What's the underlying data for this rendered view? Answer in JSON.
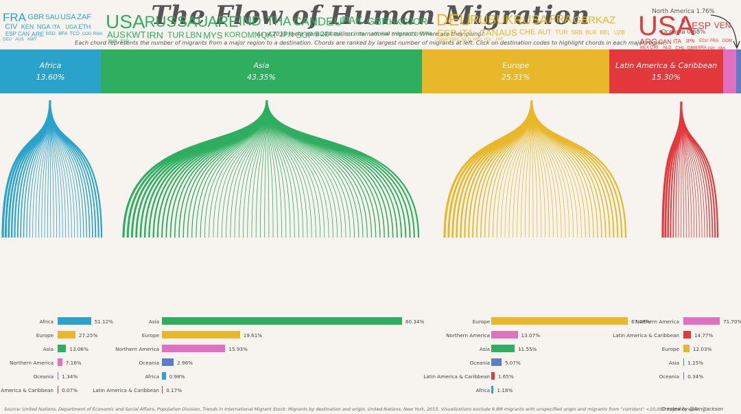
{
  "title": "The Flow of Human Migration",
  "subtitle_line1": "As of 2015 there were 244 million international migrants.  Where are they going?",
  "subtitle_line2": "Each chord represents the number of migrants from a major region to a destination.  Chords are ranked by largest number of migrants at left.  Click on destination codes to highlight chords in each major region.",
  "side_note": {
    "line1": "North America 1.76%",
    "line2": "&",
    "line3": "Oceania 0.68%"
  },
  "colors": {
    "Africa": "#2aa3cc",
    "Asia": "#2fae60",
    "Europe": "#e9b82a",
    "Latin America & Caribbean": "#e3383c",
    "Northern America": "#e071c0",
    "Oceania": "#5a7fc6",
    "background": "#f7f3ee"
  },
  "chart_data": {
    "type": "bar",
    "title": "The Flow of Human Migration",
    "regions": [
      {
        "name": "Africa",
        "share_pct": 13.6,
        "label": "13.60%"
      },
      {
        "name": "Asia",
        "share_pct": 43.35,
        "label": "43.35%"
      },
      {
        "name": "Europe",
        "share_pct": 25.31,
        "label": "25.31%"
      },
      {
        "name": "Latin America & Caribbean",
        "share_pct": 15.3,
        "label": "15.30%"
      },
      {
        "name": "North America",
        "share_pct": 1.76,
        "label": ""
      },
      {
        "name": "Oceania",
        "share_pct": 0.68,
        "label": ""
      }
    ],
    "origin_breakdown": [
      {
        "destination": "Africa",
        "rows": [
          {
            "origin": "Africa",
            "pct": 51.12,
            "label": "51.12%"
          },
          {
            "origin": "Europe",
            "pct": 27.25,
            "label": "27.25%"
          },
          {
            "origin": "Asia",
            "pct": 13.06,
            "label": "13.06%"
          },
          {
            "origin": "Northern America",
            "pct": 7.16,
            "label": "7.16%"
          },
          {
            "origin": "Oceania",
            "pct": 1.34,
            "label": "1.34%"
          },
          {
            "origin": "Latin America & Caribbean",
            "pct": 0.07,
            "label": "0.07%"
          }
        ]
      },
      {
        "destination": "Asia",
        "rows": [
          {
            "origin": "Asia",
            "pct": 60.34,
            "label": "60.34%"
          },
          {
            "origin": "Europe",
            "pct": 19.61,
            "label": "19.61%"
          },
          {
            "origin": "Northern America",
            "pct": 15.93,
            "label": "15.93%"
          },
          {
            "origin": "Oceania",
            "pct": 2.96,
            "label": "2.96%"
          },
          {
            "origin": "Africa",
            "pct": 0.98,
            "label": "0.98%"
          },
          {
            "origin": "Latin America & Caribbean",
            "pct": 0.17,
            "label": "0.17%"
          }
        ]
      },
      {
        "destination": "Europe",
        "rows": [
          {
            "origin": "Europe",
            "pct": 67.48,
            "label": "67.48%"
          },
          {
            "origin": "Northern America",
            "pct": 13.07,
            "label": "13.07%"
          },
          {
            "origin": "Asia",
            "pct": 11.55,
            "label": "11.55%"
          },
          {
            "origin": "Oceania",
            "pct": 5.07,
            "label": "5.07%"
          },
          {
            "origin": "Latin America & Caribbean",
            "pct": 1.65,
            "label": "1.65%"
          },
          {
            "origin": "Africa",
            "pct": 1.18,
            "label": "1.18%"
          }
        ]
      },
      {
        "destination": "Latin America & Caribbean",
        "rows": [
          {
            "origin": "Northern America",
            "pct": 71.7,
            "label": "71.70%"
          },
          {
            "origin": "Latin America & Caribbean",
            "pct": 14.77,
            "label": "14.77%"
          },
          {
            "origin": "Europe",
            "pct": 12.03,
            "label": "12.03%"
          },
          {
            "origin": "Asia",
            "pct": 1.15,
            "label": "1.15%"
          },
          {
            "origin": "Oceania",
            "pct": 0.34,
            "label": "0.34%"
          }
        ]
      }
    ],
    "destination_codes": [
      {
        "region": "Africa",
        "codes": [
          {
            "t": "FRA",
            "s": 17
          },
          {
            "t": "GBR",
            "s": 11
          },
          {
            "t": "SAU",
            "s": 10
          },
          {
            "t": "USA",
            "s": 11
          },
          {
            "t": "ZAF",
            "s": 11
          },
          {
            "t": "CIV",
            "s": 11
          },
          {
            "t": "KEN",
            "s": 9
          },
          {
            "t": "NGA",
            "s": 9
          },
          {
            "t": "ITA",
            "s": 8
          },
          {
            "t": "UGA",
            "s": 8
          },
          {
            "t": "ETH",
            "s": 9
          },
          {
            "t": "ESP",
            "s": 8
          },
          {
            "t": "CAN",
            "s": 8
          },
          {
            "t": "ARE",
            "s": 9
          },
          {
            "t": "SSD",
            "s": 7
          },
          {
            "t": "BFA",
            "s": 7
          },
          {
            "t": "TCD",
            "s": 7
          },
          {
            "t": "COD",
            "s": 6
          },
          {
            "t": "RWA",
            "s": 6
          },
          {
            "t": "DEU",
            "s": 6
          },
          {
            "t": "AUS",
            "s": 6
          },
          {
            "t": "KWT",
            "s": 6
          }
        ]
      },
      {
        "region": "Asia",
        "codes": [
          {
            "t": "USA",
            "s": 28
          },
          {
            "t": "RUS",
            "s": 22
          },
          {
            "t": "SAU",
            "s": 22
          },
          {
            "t": "ARE",
            "s": 22
          },
          {
            "t": "IND",
            "s": 19
          },
          {
            "t": "THA",
            "s": 18
          },
          {
            "t": "CAN",
            "s": 17
          },
          {
            "t": "DEU",
            "s": 17
          },
          {
            "t": "PAK",
            "s": 16
          },
          {
            "t": "GBR",
            "s": 15
          },
          {
            "t": "HKG",
            "s": 13
          },
          {
            "t": "JOR",
            "s": 14
          },
          {
            "t": "AUS",
            "s": 13
          },
          {
            "t": "KWT",
            "s": 13
          },
          {
            "t": "IRN",
            "s": 14
          },
          {
            "t": "TUR",
            "s": 12
          },
          {
            "t": "LBN",
            "s": 12
          },
          {
            "t": "MYS",
            "s": 13
          },
          {
            "t": "KOR",
            "s": 11
          },
          {
            "t": "OMN",
            "s": 12
          },
          {
            "t": "QAT",
            "s": 12
          },
          {
            "t": "JPN",
            "s": 11
          },
          {
            "t": "SGP",
            "s": 12
          },
          {
            "t": "BGD",
            "s": 10
          },
          {
            "t": "FRA",
            "s": 8
          },
          {
            "t": "NLD",
            "s": 7
          },
          {
            "t": "ITA",
            "s": 7
          },
          {
            "t": "UKR",
            "s": 7
          },
          {
            "t": "SWE",
            "s": 6
          },
          {
            "t": "SYR",
            "s": 7
          },
          {
            "t": "KAZ",
            "s": 7
          },
          {
            "t": "CHN",
            "s": 6
          },
          {
            "t": "NPL",
            "s": 6
          },
          {
            "t": "BHR",
            "s": 6
          },
          {
            "t": "ESP",
            "s": 6
          }
        ]
      },
      {
        "region": "Europe",
        "codes": [
          {
            "t": "DEU",
            "s": 24
          },
          {
            "t": "RUS",
            "s": 18
          },
          {
            "t": "UKR",
            "s": 18
          },
          {
            "t": "USA",
            "s": 18
          },
          {
            "t": "FRA",
            "s": 16
          },
          {
            "t": "GBR",
            "s": 15
          },
          {
            "t": "KAZ",
            "s": 15
          },
          {
            "t": "ESP",
            "s": 14
          },
          {
            "t": "ITA",
            "s": 14
          },
          {
            "t": "CAN",
            "s": 13
          },
          {
            "t": "AUS",
            "s": 13
          },
          {
            "t": "CHE",
            "s": 11
          },
          {
            "t": "AUT",
            "s": 10
          },
          {
            "t": "TUR",
            "s": 9
          },
          {
            "t": "SRB",
            "s": 8
          },
          {
            "t": "BLR",
            "s": 8
          },
          {
            "t": "BEL",
            "s": 8
          },
          {
            "t": "UZB",
            "s": 8
          },
          {
            "t": "SWE",
            "s": 8
          },
          {
            "t": "GRC",
            "s": 7
          },
          {
            "t": "NLD",
            "s": 7
          },
          {
            "t": "HRV",
            "s": 6
          },
          {
            "t": "POL",
            "s": 6
          },
          {
            "t": "ZAF",
            "s": 6
          }
        ]
      },
      {
        "region": "Latin America & Caribbean",
        "codes": [
          {
            "t": "USA",
            "s": 40
          },
          {
            "t": "ESP",
            "s": 14
          },
          {
            "t": "VEN",
            "s": 12
          },
          {
            "t": "ARG",
            "s": 12
          },
          {
            "t": "CAN",
            "s": 9
          },
          {
            "t": "ITA",
            "s": 8
          },
          {
            "t": "JPN",
            "s": 7
          },
          {
            "t": "ECU",
            "s": 6
          },
          {
            "t": "FRA",
            "s": 6
          },
          {
            "t": "DOM",
            "s": 6
          },
          {
            "t": "MEX",
            "s": 6
          },
          {
            "t": "CRI",
            "s": 7
          },
          {
            "t": "NLD",
            "s": 6
          },
          {
            "t": "CHL",
            "s": 7
          },
          {
            "t": "GBR",
            "s": 7
          },
          {
            "t": "BRA",
            "s": 6
          },
          {
            "t": "PRY",
            "s": 5
          },
          {
            "t": "PAN",
            "s": 5
          }
        ]
      }
    ]
  },
  "source": "Source: United Nations, Department of Economic and Social Affairs, Population Division, Trends in International Migrant Stock: Migrants by destination and origin, United Nations, New York, 2015.  Visualizations exclude 9.8M migrants with unspecified origin and migrants from \"corridors\" <10,000 migrants wide.",
  "credit": "Created by @AmiJJackson"
}
